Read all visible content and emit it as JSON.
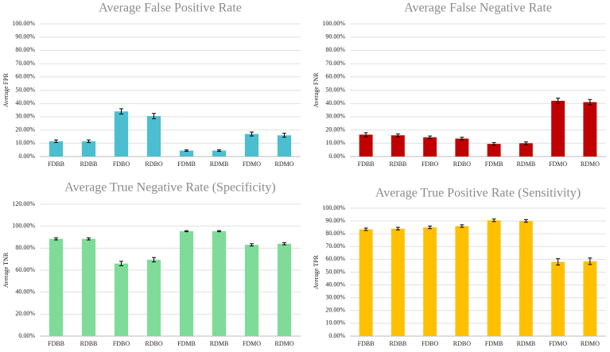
{
  "chart_data": [
    {
      "type": "bar",
      "title": "Average False Positive Rate",
      "y_label": "Average FPR",
      "categories": [
        "FDBB",
        "RDBB",
        "FDBO",
        "RDBO",
        "FDMB",
        "RDMB",
        "FDMO",
        "RDMO"
      ],
      "values": [
        11.5,
        11.5,
        34,
        30.5,
        4.5,
        4.5,
        17,
        16
      ],
      "errors": [
        1,
        1,
        2,
        2,
        0.5,
        0.5,
        1.5,
        1.5
      ],
      "color": "#4bbfcf",
      "ylim": [
        0,
        100
      ],
      "yticks": [
        {
          "value": 0,
          "label": "0.00%"
        },
        {
          "value": 10,
          "label": "10.00%"
        },
        {
          "value": 20,
          "label": "20.00%"
        },
        {
          "value": 30,
          "label": "30.00%"
        },
        {
          "value": 40,
          "label": "40.00%"
        },
        {
          "value": 50,
          "label": "50.00%"
        },
        {
          "value": 60,
          "label": "60.00%"
        },
        {
          "value": 70,
          "label": "70.00%"
        },
        {
          "value": 80,
          "label": "80.00%"
        },
        {
          "value": 90,
          "label": "90.00%"
        },
        {
          "value": 100,
          "label": "100.00%"
        }
      ],
      "grid": true
    },
    {
      "type": "bar",
      "title": "Average False Negative Rate",
      "y_label": "Average FNR",
      "categories": [
        "FDBB",
        "RDBB",
        "FDBO",
        "RDBO",
        "FDMB",
        "RDMB",
        "FDMO",
        "RDMO"
      ],
      "values": [
        16.5,
        16,
        14.5,
        13.5,
        9.5,
        10,
        42,
        41
      ],
      "errors": [
        1.5,
        1,
        1,
        1,
        1,
        1,
        2,
        2
      ],
      "color": "#c00000",
      "ylim": [
        0,
        100
      ],
      "yticks": [
        {
          "value": 0,
          "label": "0.00%"
        },
        {
          "value": 10,
          "label": "10.00%"
        },
        {
          "value": 20,
          "label": "20.00%"
        },
        {
          "value": 30,
          "label": "30.00%"
        },
        {
          "value": 40,
          "label": "40.00%"
        },
        {
          "value": 50,
          "label": "50.00%"
        },
        {
          "value": 60,
          "label": "60.00%"
        },
        {
          "value": 70,
          "label": "70.00%"
        },
        {
          "value": 80,
          "label": "80.00%"
        },
        {
          "value": 90,
          "label": "90.00%"
        },
        {
          "value": 100,
          "label": "100.00%"
        }
      ],
      "grid": true
    },
    {
      "type": "bar",
      "title": "Average True Negative Rate (Specificity)",
      "y_label": "Average TNR",
      "categories": [
        "FDBB",
        "RDBB",
        "FDBO",
        "RDBO",
        "FDMB",
        "RDMB",
        "FDMO",
        "RDMO"
      ],
      "values": [
        88.5,
        88.5,
        66,
        69.5,
        95.5,
        95.5,
        83,
        84
      ],
      "errors": [
        1,
        1,
        2,
        2,
        0.5,
        0.5,
        1,
        1
      ],
      "color": "#7fdc98",
      "ylim": [
        0,
        120
      ],
      "yticks": [
        {
          "value": 0,
          "label": "0.00%"
        },
        {
          "value": 20,
          "label": "20.00%"
        },
        {
          "value": 40,
          "label": "40.00%"
        },
        {
          "value": 60,
          "label": "60.00%"
        },
        {
          "value": 80,
          "label": "80.00%"
        },
        {
          "value": 100,
          "label": "100.00%"
        },
        {
          "value": 120,
          "label": "120.00%"
        }
      ],
      "grid": true
    },
    {
      "type": "bar",
      "title": "Average True Positive Rate (Sensitivity)",
      "y_label": "Average TPR",
      "categories": [
        "FDBB",
        "RDBB",
        "FDBO",
        "RDBO",
        "FDMB",
        "RDMB",
        "FDMO",
        "RDMO"
      ],
      "values": [
        83.5,
        84,
        85,
        86,
        90.5,
        90,
        58,
        58.5
      ],
      "errors": [
        1,
        1,
        1,
        1,
        1,
        1,
        2.5,
        2.5
      ],
      "color": "#ffc000",
      "ylim": [
        0,
        100
      ],
      "yticks": [
        {
          "value": 0,
          "label": "0.00%"
        },
        {
          "value": 10,
          "label": "10.00%"
        },
        {
          "value": 20,
          "label": "20.00%"
        },
        {
          "value": 30,
          "label": "30.00%"
        },
        {
          "value": 40,
          "label": "40.00%"
        },
        {
          "value": 50,
          "label": "50.00%"
        },
        {
          "value": 60,
          "label": "60.00%"
        },
        {
          "value": 70,
          "label": "70.00%"
        },
        {
          "value": 80,
          "label": "80.00%"
        },
        {
          "value": 90,
          "label": "90.00%"
        },
        {
          "value": 100,
          "label": "100.00%"
        }
      ],
      "grid": true
    }
  ]
}
